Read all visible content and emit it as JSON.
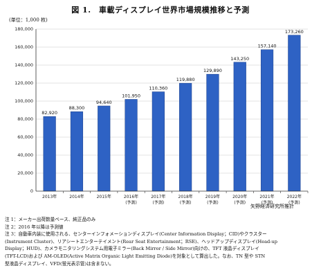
{
  "title": "図 1.　車載ディスプレイ世界市場規模推移と予測",
  "unit": "(単位：1,000 枚)",
  "source": "矢野経済研究所推計",
  "notes": [
    "注 1：メーカー出荷数量ベース、純正品のみ",
    "注 2：2016 年以降は予測値",
    "注 3：自動車内装に使用される、センターインフォメーションディスプレイ(Center Information Display；CID)やクラスター",
    "(Instrument Cluster)、リアシートエンターテイメント(Rear Seat Entertainment；RSE)、ヘッドアップディスプレイ(Head-up",
    "Display；HUD)、カメラモニタリングシステム用電子ミラー(Back Mirror / Side Mirror)向けの、TFT 液晶ディスプレイ",
    "(TFT-LCD)および AM-OLED(Active Matrix Organic Light Emitting Diode)を対象として算出した。なお、TN 型や STN",
    "型液晶ディスプレイ、VFD(蛍光表示管)は含まない。"
  ],
  "chart_data": {
    "type": "bar",
    "title": "図 1.　車載ディスプレイ世界市場規模推移と予測",
    "ylabel": "(単位：1,000 枚)",
    "xlabel": "",
    "categories": [
      [
        "2013年"
      ],
      [
        "2014年"
      ],
      [
        "2015年"
      ],
      [
        "2016年",
        "(予測)"
      ],
      [
        "2017年",
        "(予測)"
      ],
      [
        "2018年",
        "(予測)"
      ],
      [
        "2019年",
        "(予測)"
      ],
      [
        "2020年",
        "(予測)"
      ],
      [
        "2021年",
        "(予測)"
      ],
      [
        "2022年",
        "(予測)"
      ]
    ],
    "values": [
      82920,
      88300,
      94640,
      101950,
      110360,
      119880,
      129890,
      143250,
      157140,
      173260
    ],
    "value_labels": [
      "82,920",
      "88,300",
      "94,640",
      "101,950",
      "110,360",
      "119,880",
      "129,890",
      "143,250",
      "157,140",
      "173,260"
    ],
    "ylim": [
      0,
      180000
    ],
    "yticks": [
      0,
      20000,
      40000,
      60000,
      80000,
      100000,
      120000,
      140000,
      160000,
      180000
    ],
    "ytick_labels": [
      "0",
      "20,000",
      "40,000",
      "60,000",
      "80,000",
      "100,000",
      "120,000",
      "140,000",
      "160,000",
      "180,000"
    ],
    "grid": true,
    "bar_color": "#2e62c4",
    "bar_edge_color": "#1b3f8a"
  }
}
